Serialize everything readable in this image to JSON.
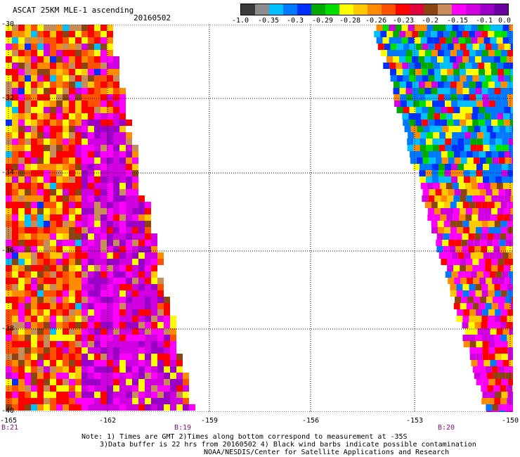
{
  "header": {
    "title": "ASCAT 25KM MLE-1 ascending",
    "date": "20160502"
  },
  "colorbar": {
    "colors": [
      "#3c3c3c",
      "#8c8c8c",
      "#00bfff",
      "#0078ff",
      "#0030ff",
      "#00a800",
      "#00e000",
      "#ffff00",
      "#ffc800",
      "#ff8c00",
      "#ff5000",
      "#ff0000",
      "#e0003c",
      "#8b4513",
      "#c68c5a",
      "#ff00ff",
      "#d000e0",
      "#9a00c8",
      "#6a00a0"
    ],
    "tick_labels": [
      "-1.0",
      "-0.35",
      "-0.3",
      "-0.29",
      "-0.28",
      "-0.26",
      "-0.23",
      "-0.2",
      "-0.15",
      "-0.1",
      "0.0"
    ]
  },
  "map": {
    "lat_labels": [
      "-30",
      "-32",
      "-34",
      "-36",
      "-38",
      "-40"
    ],
    "lon_labels": [
      "-165",
      "-162",
      "-159",
      "-156",
      "-153",
      "-150"
    ],
    "pass_labels": [
      "B:21",
      "B:19",
      "B:20"
    ]
  },
  "footer": {
    "line1": "Note: 1) Times are GMT 2)Times along bottom correspond to measurement at -35S",
    "line2": "3)Data buffer is 22 hrs from 20160502 4) Black wind barbs indicate possible contamination",
    "line3": "NOAA/NESDIS/Center for Satellite Applications and Research"
  }
}
